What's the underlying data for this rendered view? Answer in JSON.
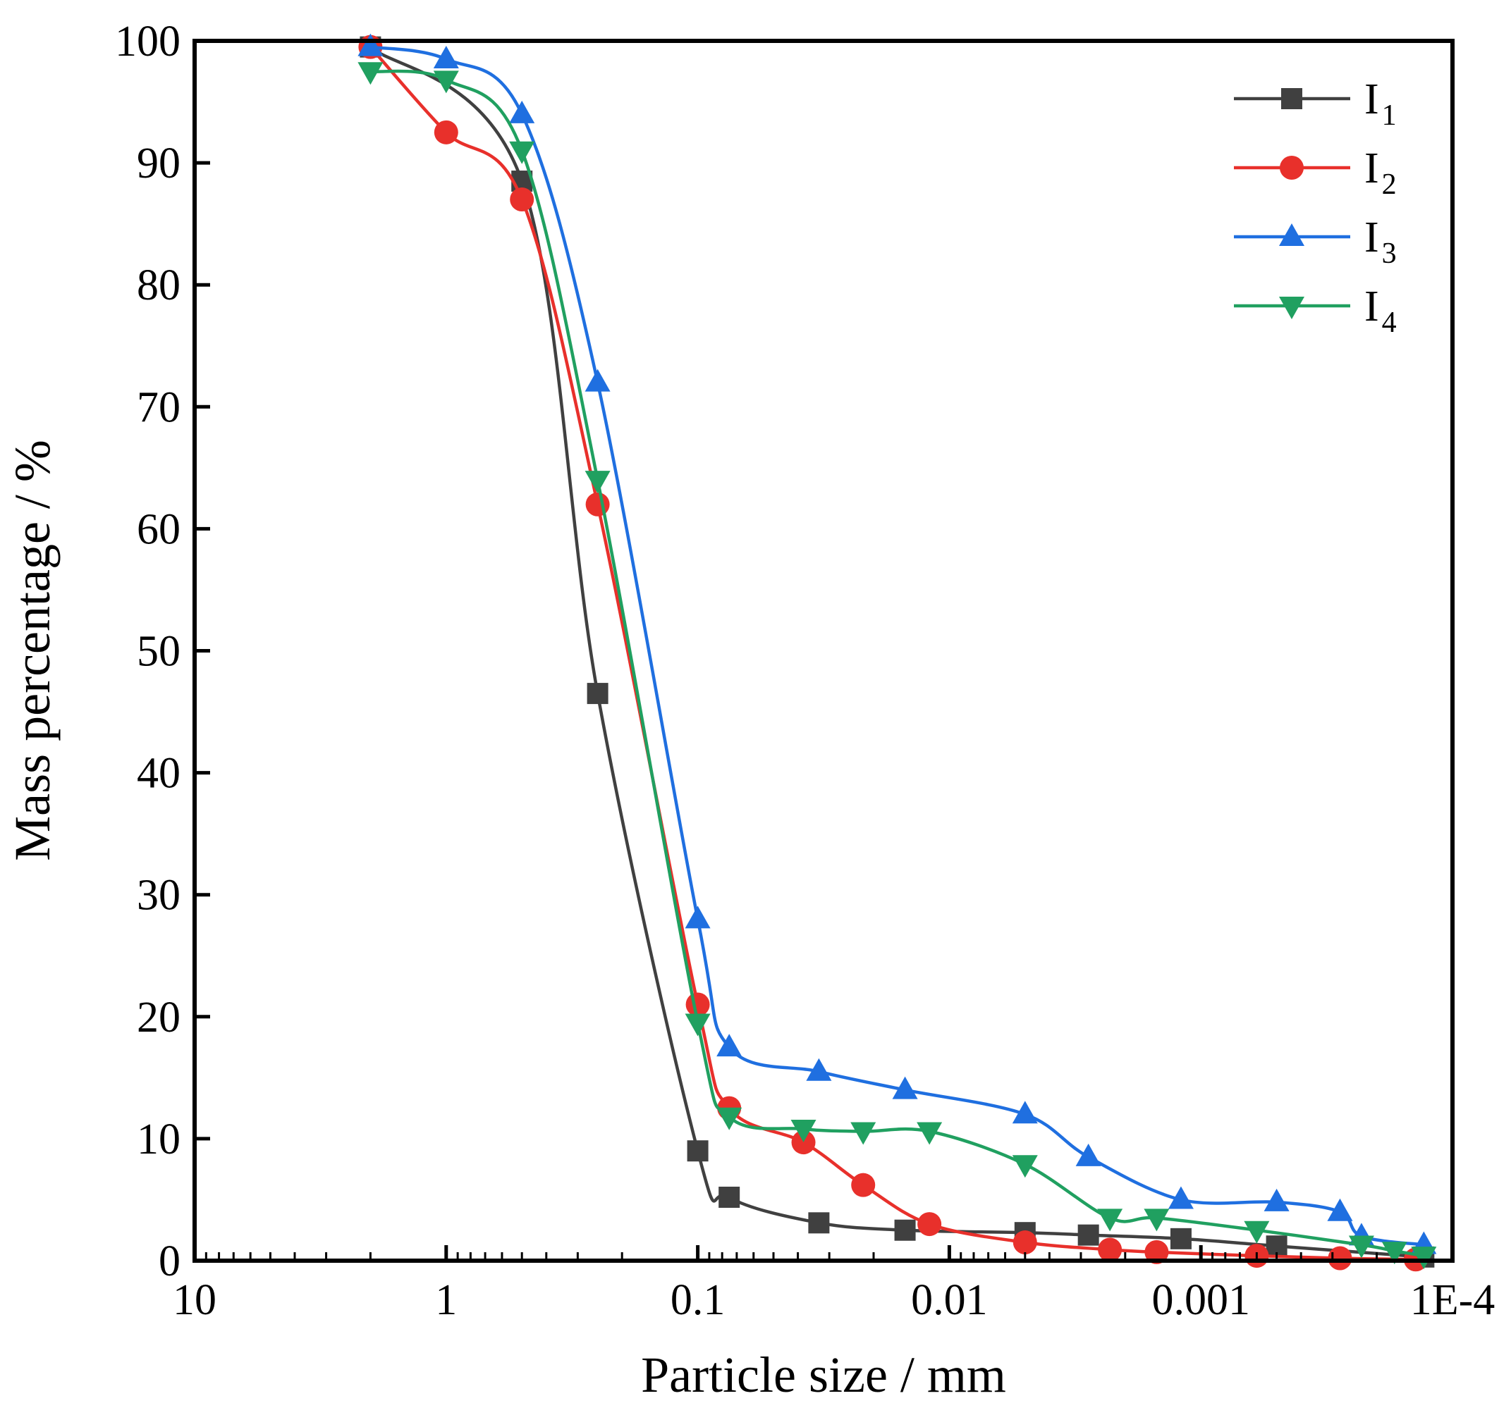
{
  "chart_data": {
    "type": "line",
    "title": "",
    "xlabel": "Particle size / mm",
    "ylabel": "Mass percentage / %",
    "x_scale": "log",
    "x_direction": "decreasing",
    "xlim": [
      10,
      0.0001
    ],
    "ylim": [
      0,
      100
    ],
    "x_ticks": [
      10,
      1,
      0.1,
      0.01,
      0.001,
      0.0001
    ],
    "x_tick_labels": [
      "10",
      "1",
      "0.1",
      "0.01",
      "0.001",
      "1E-4"
    ],
    "y_ticks": [
      0,
      10,
      20,
      30,
      40,
      50,
      60,
      70,
      80,
      90,
      100
    ],
    "y_tick_labels": [
      "0",
      "10",
      "20",
      "30",
      "40",
      "50",
      "60",
      "70",
      "80",
      "90",
      "100"
    ],
    "grid": false,
    "legend_position": "top-right",
    "series": [
      {
        "name": "I",
        "sub": "1",
        "color": "#404040",
        "marker": "square",
        "x": [
          2,
          0.5,
          0.25,
          0.1,
          0.075,
          0.033,
          0.015,
          0.005,
          0.0028,
          0.0012,
          0.0005,
          0.00013
        ],
        "y": [
          99.5,
          88.5,
          46.5,
          9,
          5.2,
          3.1,
          2.5,
          2.3,
          2.1,
          1.8,
          1.2,
          0.3
        ]
      },
      {
        "name": "I",
        "sub": "2",
        "color": "#e8302b",
        "marker": "circle",
        "x": [
          2,
          1,
          0.5,
          0.25,
          0.1,
          0.075,
          0.038,
          0.022,
          0.012,
          0.005,
          0.0023,
          0.0015,
          0.0006,
          0.00028,
          0.00014
        ],
        "y": [
          99.5,
          92.5,
          87,
          62,
          21,
          12.5,
          9.7,
          6.2,
          3,
          1.5,
          0.9,
          0.7,
          0.4,
          0.2,
          0.1
        ]
      },
      {
        "name": "I",
        "sub": "3",
        "color": "#1f6fe0",
        "marker": "triangle-up",
        "x": [
          2,
          1,
          0.5,
          0.25,
          0.1,
          0.075,
          0.033,
          0.015,
          0.005,
          0.0028,
          0.0012,
          0.0005,
          0.00028,
          0.00023,
          0.00013
        ],
        "y": [
          99.5,
          98.5,
          94,
          72,
          28,
          17.5,
          15.5,
          14,
          12,
          8.5,
          5,
          4.8,
          4,
          2,
          1.3
        ]
      },
      {
        "name": "I",
        "sub": "4",
        "color": "#20a060",
        "marker": "triangle-down",
        "x": [
          2,
          1,
          0.5,
          0.25,
          0.1,
          0.075,
          0.038,
          0.022,
          0.012,
          0.005,
          0.0023,
          0.0015,
          0.0006,
          0.00023,
          0.00017,
          0.00013
        ],
        "y": [
          97.5,
          96.8,
          91,
          64,
          19.5,
          11.8,
          10.8,
          10.6,
          10.6,
          7.9,
          3.5,
          3.5,
          2.5,
          1.3,
          0.8,
          0.4
        ]
      }
    ]
  }
}
